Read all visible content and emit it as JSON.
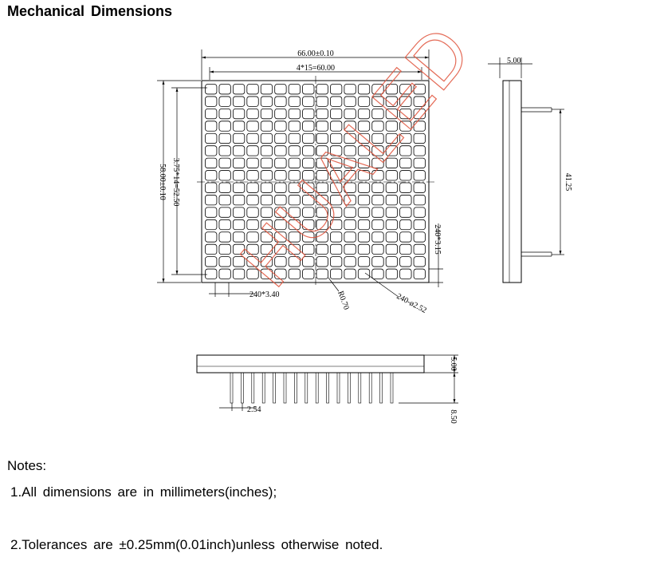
{
  "title": "Mechanical  Dimensions",
  "dimensions": {
    "overall_width": "66.00±0.10",
    "pitch_width": "4*15=60.00",
    "overall_height": "58.00±0.10",
    "pitch_height": "3.75*14=52.50",
    "side_depth": "5.00",
    "pin_span": "41.25",
    "dot_pitch_h": "240*3.40",
    "dot_pitch_v": "240*3.15",
    "corner_radius": "R0.70",
    "pin_diameter": "240-ø2.52",
    "body_height": "5.00",
    "pin_length": "8.50",
    "pin_pitch": "2.54"
  },
  "watermark": "HUALED",
  "matrix": {
    "rows": 16,
    "cols": 16
  },
  "notes": {
    "heading": "Notes:",
    "items": [
      "1.All  dimensions  are  in  millimeters(inches);",
      "2.Tolerances  are  ±0.25mm(0.01inch)unless  otherwise  noted."
    ]
  },
  "colors": {
    "line": "#000000",
    "watermark": "#e0523a",
    "background": "#ffffff"
  }
}
